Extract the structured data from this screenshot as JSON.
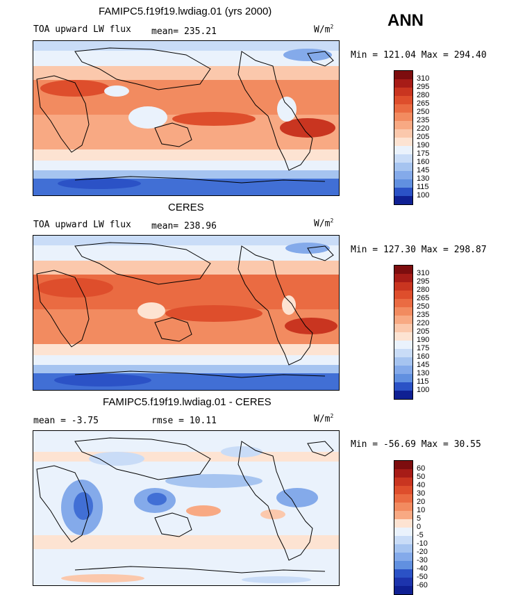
{
  "season": "ANN",
  "units": {
    "base": "W/m",
    "exp": "2"
  },
  "colors": {
    "positive": [
      "#fde3d2",
      "#fbc8ac",
      "#f8a983",
      "#f28b60",
      "#ea6b42",
      "#de4e2c",
      "#c93520",
      "#a71c17",
      "#7d0d0e"
    ],
    "negative": [
      "#eaf2fc",
      "#c9dcf7",
      "#a6c4f0",
      "#84aaea",
      "#6190e0",
      "#416fd5",
      "#2b52c6",
      "#1d34ad",
      "#0f2093"
    ],
    "land_outline": "#000000",
    "sea_ice_note": "white"
  },
  "panels": [
    {
      "id": "model",
      "title": "FAMIPC5.f19f19.lwdiag.01 (yrs 2000)",
      "left_label": "TOA upward LW flux",
      "stat": "mean= 235.21",
      "minmax": "Min = 121.04 Max = 294.40",
      "cbar_labels": [
        "310",
        "295",
        "280",
        "265",
        "250",
        "235",
        "220",
        "205",
        "190",
        "175",
        "160",
        "145",
        "130",
        "115",
        "100"
      ],
      "cbar_colors": [
        "#7d0d0e",
        "#a71c17",
        "#c93520",
        "#de4e2c",
        "#ea6b42",
        "#f28b60",
        "#f8a983",
        "#fbc8ac",
        "#fde3d2",
        "#eaf2fc",
        "#c9dcf7",
        "#a6c4f0",
        "#84aaea",
        "#6190e0",
        "#2b52c6",
        "#0f2093"
      ]
    },
    {
      "id": "obs",
      "title": "CERES",
      "left_label": "TOA upward LW flux",
      "stat": "mean= 238.96",
      "minmax": "Min = 127.30 Max = 298.87",
      "cbar_labels": [
        "310",
        "295",
        "280",
        "265",
        "250",
        "235",
        "220",
        "205",
        "190",
        "175",
        "160",
        "145",
        "130",
        "115",
        "100"
      ],
      "cbar_colors": [
        "#7d0d0e",
        "#a71c17",
        "#c93520",
        "#de4e2c",
        "#ea6b42",
        "#f28b60",
        "#f8a983",
        "#fbc8ac",
        "#fde3d2",
        "#eaf2fc",
        "#c9dcf7",
        "#a6c4f0",
        "#84aaea",
        "#6190e0",
        "#2b52c6",
        "#0f2093"
      ]
    },
    {
      "id": "diff",
      "title": "FAMIPC5.f19f19.lwdiag.01 - CERES",
      "left_label": "mean =  -3.75",
      "stat": "rmse =  10.11",
      "minmax": "Min = -56.69 Max =  30.55",
      "cbar_labels": [
        "60",
        "50",
        "40",
        "30",
        "20",
        "10",
        "5",
        "0",
        "-5",
        "-10",
        "-20",
        "-30",
        "-40",
        "-50",
        "-60"
      ],
      "cbar_colors": [
        "#7d0d0e",
        "#a71c17",
        "#c93520",
        "#de4e2c",
        "#ea6b42",
        "#f28b60",
        "#f8a983",
        "#fde3d2",
        "#eaf2fc",
        "#c9dcf7",
        "#a6c4f0",
        "#84aaea",
        "#6190e0",
        "#2b52c6",
        "#1d34ad",
        "#0f2093"
      ]
    }
  ]
}
